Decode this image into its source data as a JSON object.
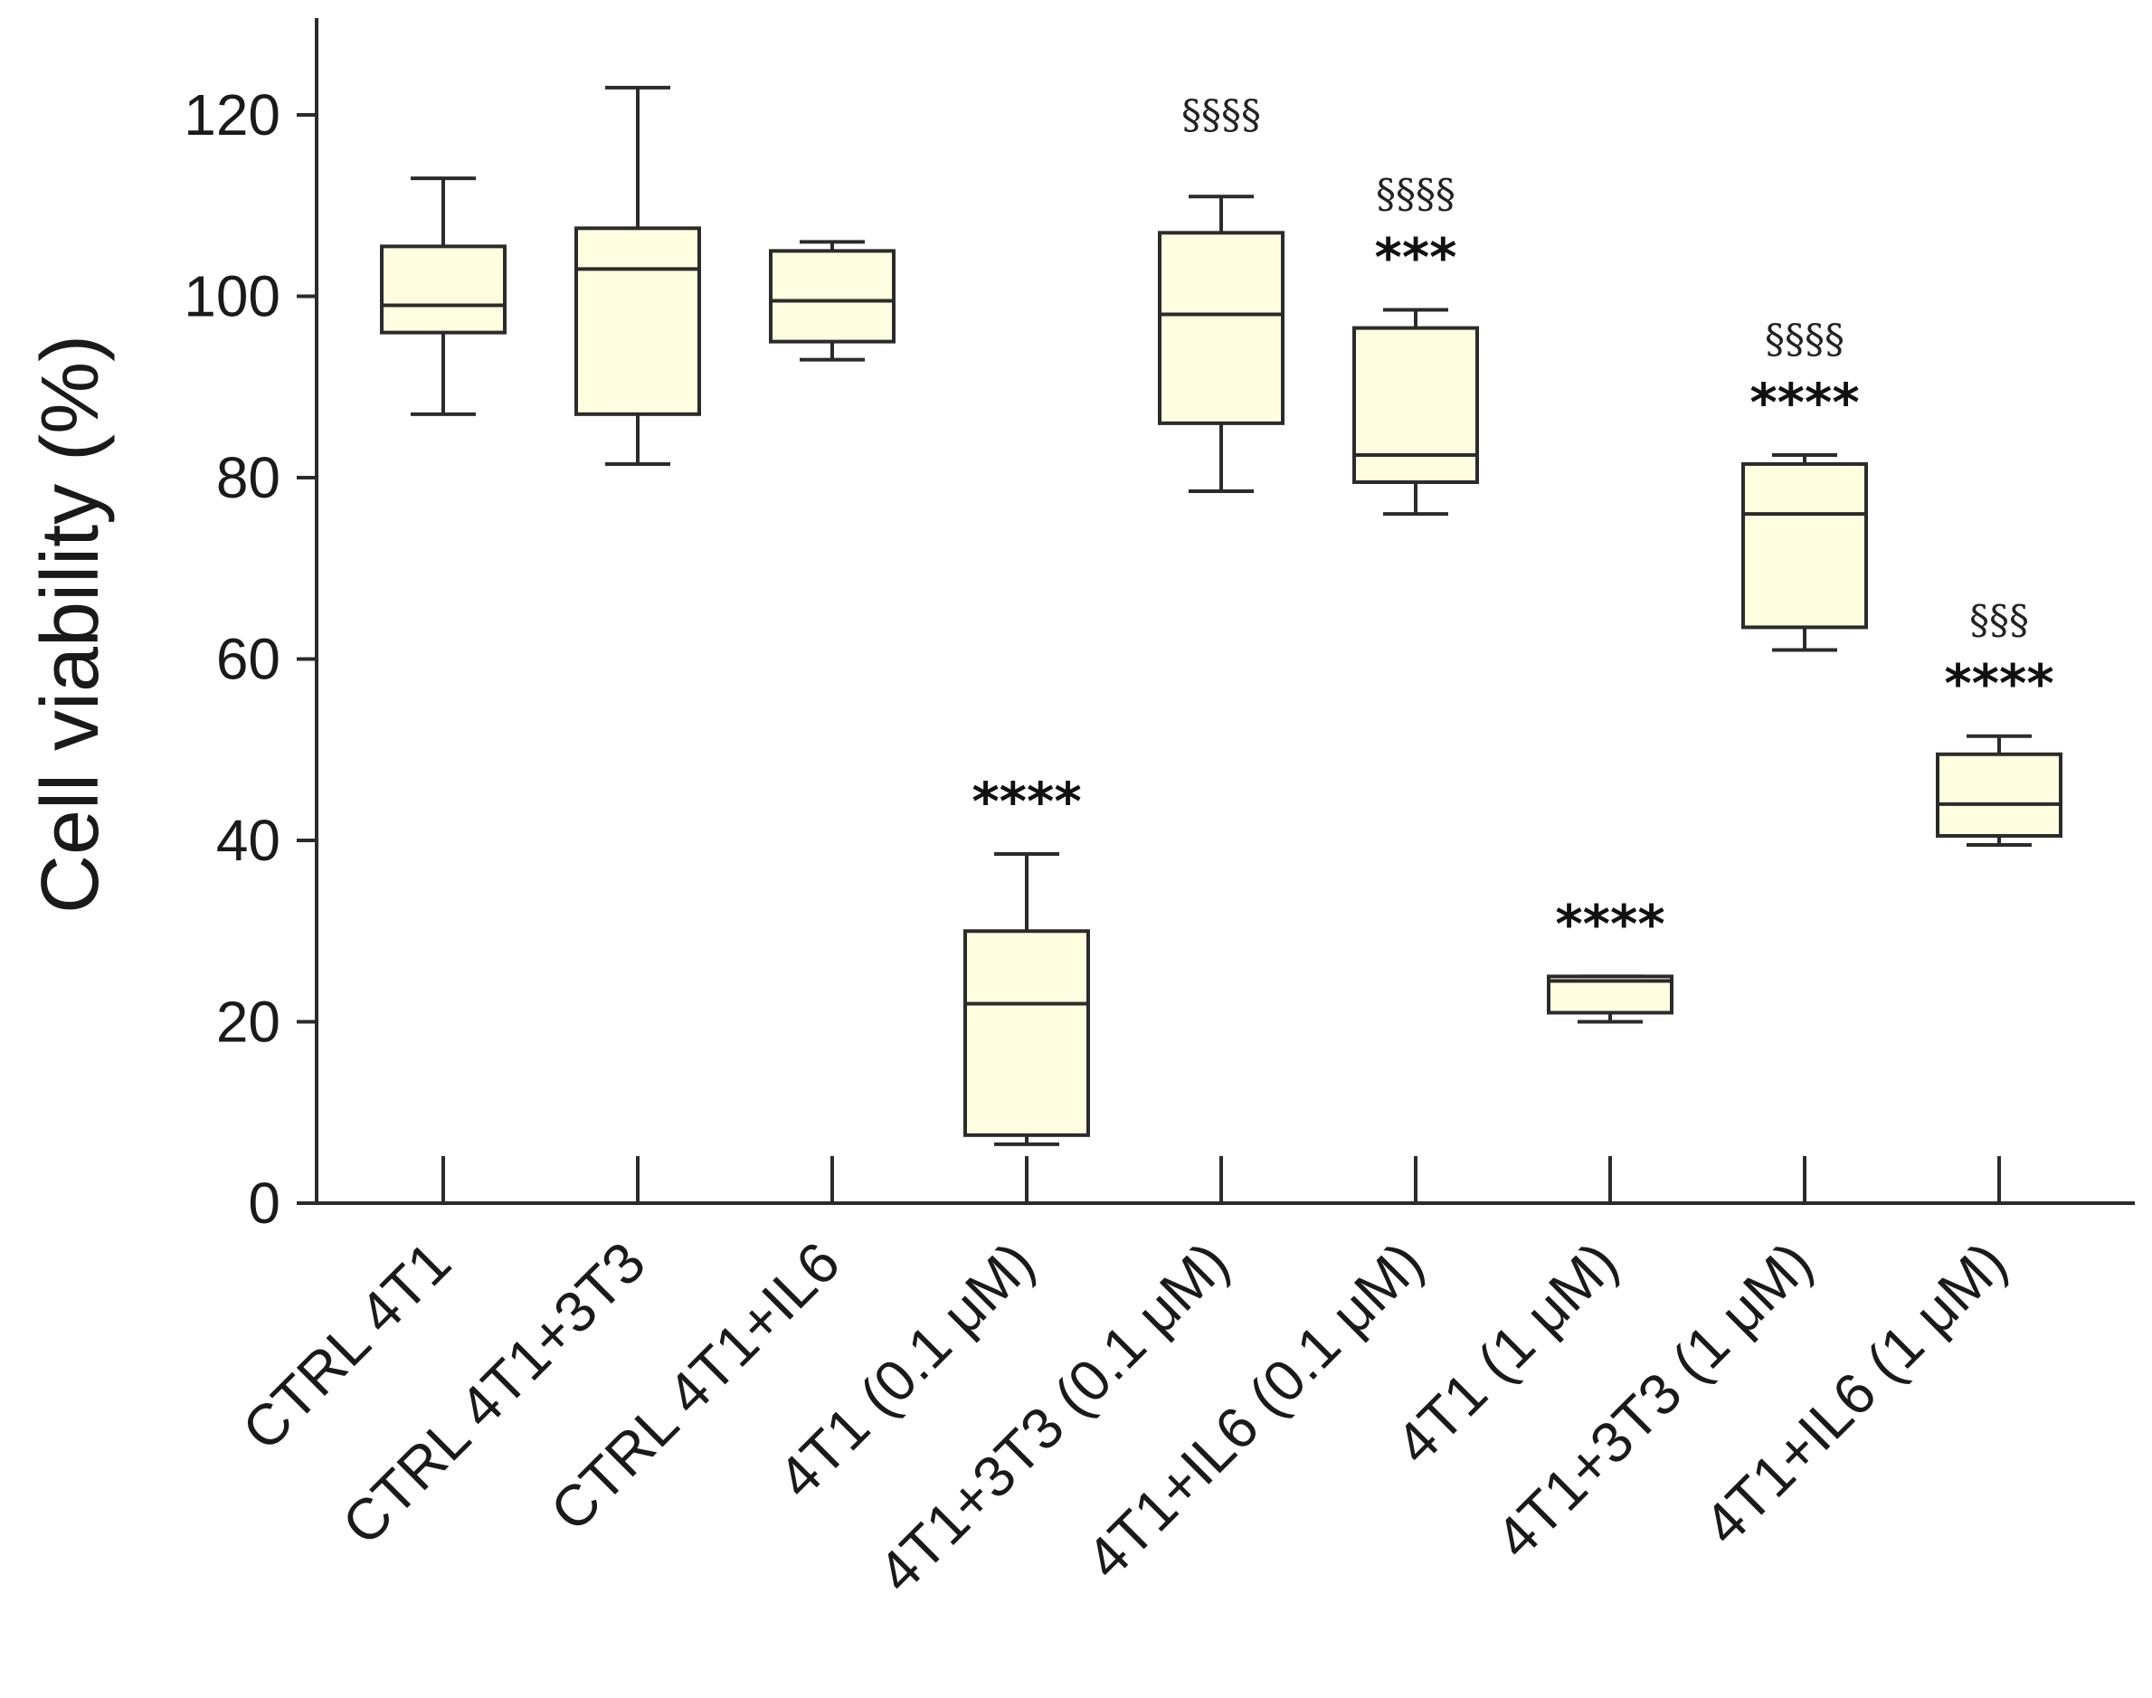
{
  "chart_data": {
    "type": "box",
    "title": "",
    "xlabel": "",
    "ylabel": "Cell viability (%)",
    "ylim": [
      0,
      130
    ],
    "yticks": [
      0,
      20,
      40,
      60,
      80,
      100,
      120
    ],
    "categories": [
      "CTRL 4T1",
      "CTRL 4T1+3T3",
      "CTRL 4T1+IL6",
      "4T1 (0.1 μM)",
      "4T1+3T3 (0.1 μM)",
      "4T1+IL6 (0.1 μM)",
      "4T1 (1 μM)",
      "4T1+3T3 (1 μM)",
      "4T1+IL6 (1 μM)"
    ],
    "boxes": [
      {
        "min": 87,
        "q1": 96,
        "median": 99,
        "q3": 105.5,
        "max": 113
      },
      {
        "min": 81.5,
        "q1": 87,
        "median": 103,
        "q3": 107.5,
        "max": 123
      },
      {
        "min": 93,
        "q1": 95,
        "median": 99.5,
        "q3": 105,
        "max": 106
      },
      {
        "min": 6.5,
        "q1": 7.5,
        "median": 22,
        "q3": 30,
        "max": 38.5
      },
      {
        "min": 78.5,
        "q1": 86,
        "median": 98,
        "q3": 107,
        "max": 111
      },
      {
        "min": 76,
        "q1": 79.5,
        "median": 82.5,
        "q3": 96.5,
        "max": 98.5
      },
      {
        "min": 20,
        "q1": 21,
        "median": 24.5,
        "q3": 25,
        "max": 25
      },
      {
        "min": 61,
        "q1": 63.5,
        "median": 76,
        "q3": 81.5,
        "max": 82.5
      },
      {
        "min": 39.5,
        "q1": 40.5,
        "median": 44,
        "q3": 49.5,
        "max": 51.5
      }
    ],
    "significance_stars": [
      "",
      "",
      "",
      "****",
      "",
      "***",
      "****",
      "****",
      "****"
    ],
    "significance_sections": [
      "",
      "",
      "",
      "",
      "§§§§",
      "§§§§",
      "",
      "§§§§",
      "§§§"
    ]
  }
}
